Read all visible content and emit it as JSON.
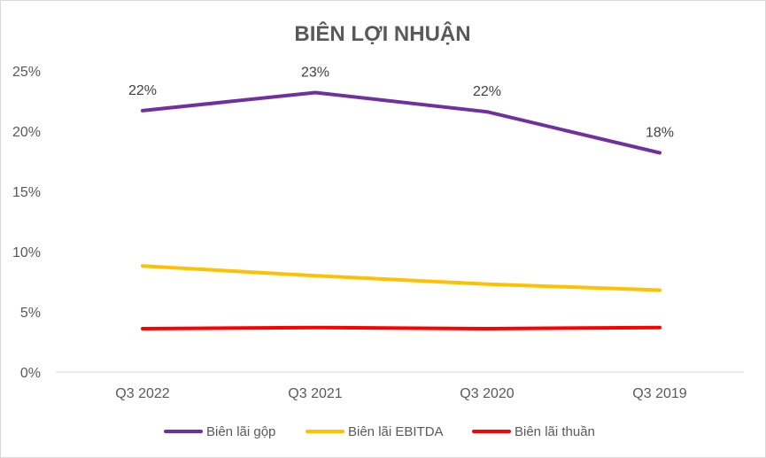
{
  "chart_data": {
    "type": "line",
    "title": "BIÊN LỢI NHUẬN",
    "categories": [
      "Q3 2022",
      "Q3 2021",
      "Q3 2020",
      "Q3 2019"
    ],
    "ylim": [
      0,
      25
    ],
    "yticks": [
      "0%",
      "5%",
      "10%",
      "15%",
      "20%",
      "25%"
    ],
    "ytick_values": [
      0,
      5,
      10,
      15,
      20,
      25
    ],
    "grid": false,
    "legend_position": "bottom",
    "series": [
      {
        "name": "Biên lãi gộp",
        "color": "#7030A0",
        "values": [
          21.7,
          23.2,
          21.6,
          18.2
        ],
        "data_labels": [
          "22%",
          "23%",
          "22%",
          "18%"
        ]
      },
      {
        "name": "Biên lãi EBITDA",
        "color": "#FFC000",
        "values": [
          8.8,
          8.0,
          7.3,
          6.8
        ]
      },
      {
        "name": "Biên lãi thuần",
        "color": "#FF0000",
        "values": [
          3.6,
          3.7,
          3.6,
          3.7
        ]
      }
    ]
  }
}
